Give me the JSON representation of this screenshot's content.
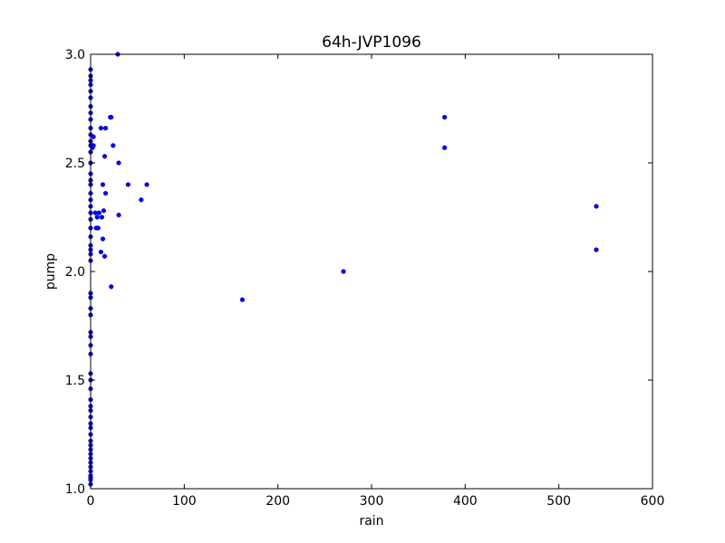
{
  "chart_data": {
    "type": "scatter",
    "title": "64h-JVP1096",
    "xlabel": "rain",
    "ylabel": "pump",
    "xlim": [
      0,
      600
    ],
    "ylim": [
      1.0,
      3.0
    ],
    "xticks": [
      0,
      100,
      200,
      300,
      400,
      500,
      600
    ],
    "yticks": [
      1.0,
      1.5,
      2.0,
      2.5,
      3.0
    ],
    "xtick_labels": [
      "0",
      "100",
      "200",
      "300",
      "400",
      "500",
      "600"
    ],
    "ytick_labels": [
      "1.0",
      "1.5",
      "2.0",
      "2.5",
      "3.0"
    ],
    "grid": false,
    "legend": "none",
    "marker_color": "#0000ff",
    "points": [
      [
        0,
        1.02
      ],
      [
        0,
        1.04
      ],
      [
        0,
        1.05
      ],
      [
        0,
        1.06
      ],
      [
        0,
        1.08
      ],
      [
        0,
        1.1
      ],
      [
        0,
        1.12
      ],
      [
        0,
        1.14
      ],
      [
        0,
        1.16
      ],
      [
        0,
        1.18
      ],
      [
        0,
        1.2
      ],
      [
        0,
        1.22
      ],
      [
        0,
        1.25
      ],
      [
        0,
        1.28
      ],
      [
        0,
        1.3
      ],
      [
        0,
        1.33
      ],
      [
        0,
        1.36
      ],
      [
        0,
        1.38
      ],
      [
        0,
        1.41
      ],
      [
        0,
        1.46
      ],
      [
        0,
        1.5
      ],
      [
        0,
        1.53
      ],
      [
        0,
        1.62
      ],
      [
        0,
        1.66
      ],
      [
        0,
        1.7
      ],
      [
        0,
        1.72
      ],
      [
        0,
        1.8
      ],
      [
        0,
        1.83
      ],
      [
        0,
        1.88
      ],
      [
        0,
        1.9
      ],
      [
        0,
        2.05
      ],
      [
        0,
        2.08
      ],
      [
        0,
        2.1
      ],
      [
        0,
        2.12
      ],
      [
        0,
        2.16
      ],
      [
        0,
        2.2
      ],
      [
        0,
        2.24
      ],
      [
        0,
        2.27
      ],
      [
        0,
        2.3
      ],
      [
        0,
        2.33
      ],
      [
        0,
        2.36
      ],
      [
        0,
        2.4
      ],
      [
        0,
        2.42
      ],
      [
        0,
        2.45
      ],
      [
        0,
        2.5
      ],
      [
        0,
        2.55
      ],
      [
        0,
        2.58
      ],
      [
        0,
        2.6
      ],
      [
        0,
        2.63
      ],
      [
        0,
        2.66
      ],
      [
        0,
        2.7
      ],
      [
        0,
        2.73
      ],
      [
        0,
        2.76
      ],
      [
        0,
        2.8
      ],
      [
        0,
        2.83
      ],
      [
        0,
        2.86
      ],
      [
        0,
        2.88
      ],
      [
        0,
        2.9
      ],
      [
        0,
        2.93
      ],
      [
        1,
        2.58
      ],
      [
        2,
        2.57
      ],
      [
        3,
        2.62
      ],
      [
        3,
        2.58
      ],
      [
        5,
        2.27
      ],
      [
        6,
        2.2
      ],
      [
        7,
        2.25
      ],
      [
        8,
        2.2
      ],
      [
        9,
        2.27
      ],
      [
        11,
        2.66
      ],
      [
        11,
        2.09
      ],
      [
        12,
        2.25
      ],
      [
        13,
        2.4
      ],
      [
        13,
        2.15
      ],
      [
        14,
        2.28
      ],
      [
        15,
        2.53
      ],
      [
        15,
        2.07
      ],
      [
        16,
        2.66
      ],
      [
        16,
        2.36
      ],
      [
        21,
        2.71
      ],
      [
        22,
        2.71
      ],
      [
        22,
        1.93
      ],
      [
        24,
        2.58
      ],
      [
        29,
        3.0
      ],
      [
        30,
        2.5
      ],
      [
        30,
        2.26
      ],
      [
        40,
        2.4
      ],
      [
        54,
        2.33
      ],
      [
        60,
        2.4
      ],
      [
        162,
        1.87
      ],
      [
        270,
        2.0
      ],
      [
        378,
        2.71
      ],
      [
        378,
        2.57
      ],
      [
        540,
        2.3
      ],
      [
        540,
        2.1
      ]
    ]
  }
}
